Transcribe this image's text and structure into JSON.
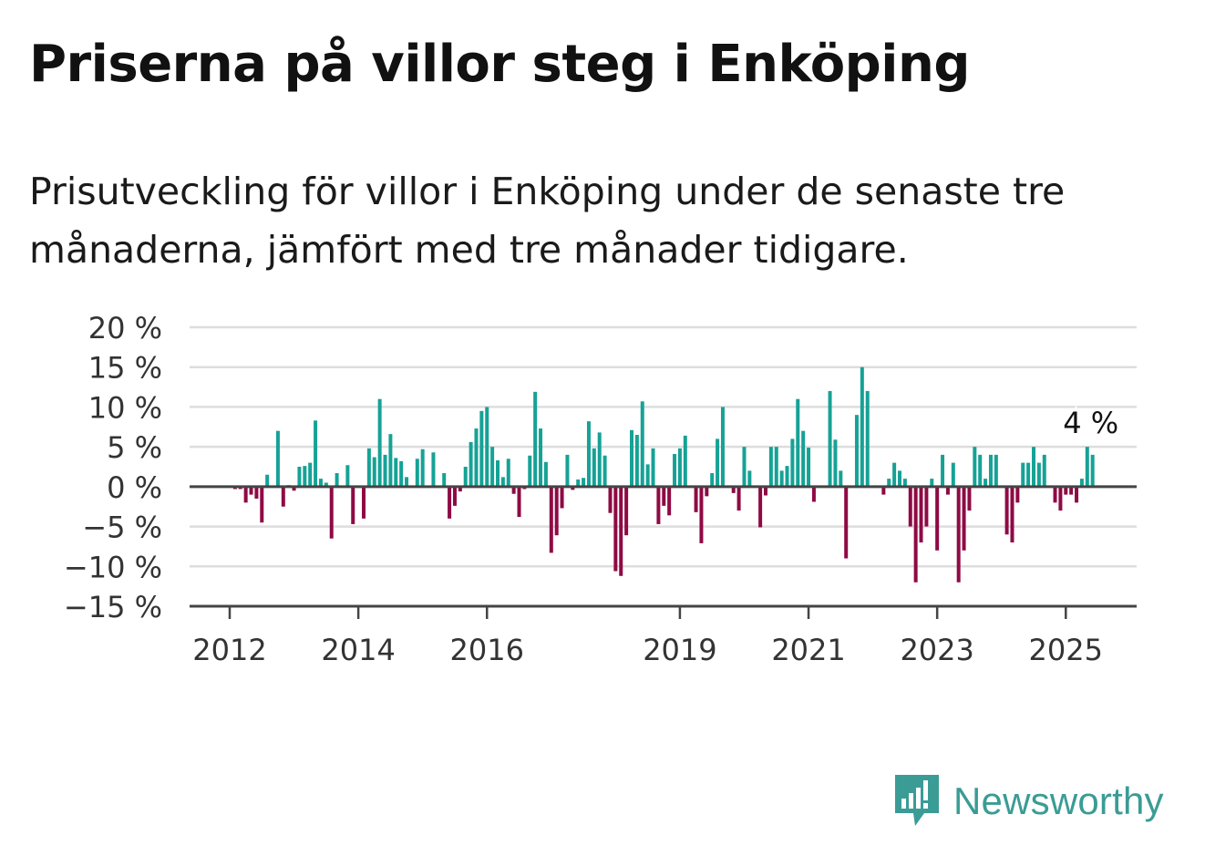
{
  "title": "Priserna på villor steg i Enköping",
  "subtitle": "Prisutveckling för villor i Enköping under de senaste tre månaderna, jämfört med tre månader tidigare.",
  "brand": "Newsworthy",
  "colors": {
    "positive": "#16a296",
    "negative": "#8e0a44",
    "grid": "#dddddd",
    "axis": "#444444",
    "brand": "#3a9c95"
  },
  "chart_data": {
    "type": "bar",
    "y_ticks": [
      "20 %",
      "15 %",
      "10 %",
      "5 %",
      "0 %",
      "−5 %",
      "−10 %",
      "−15 %"
    ],
    "y_tick_values": [
      20,
      15,
      10,
      5,
      0,
      -5,
      -10,
      -15
    ],
    "ylim": [
      -15,
      20
    ],
    "x_ticks": [
      "2012",
      "2014",
      "2016",
      "2019",
      "2021",
      "2023",
      "2025"
    ],
    "x_tick_years": [
      2012,
      2014,
      2016,
      2019,
      2021,
      2023,
      2025
    ],
    "x_start": "2012-01",
    "values": [
      0,
      -0.3,
      -0.3,
      -2,
      -1,
      -1.5,
      -4.5,
      1.5,
      0,
      7,
      -2.5,
      0.2,
      -0.5,
      2.5,
      2.6,
      3,
      8.3,
      1,
      0.5,
      -6.5,
      1.7,
      0,
      2.7,
      -4.7,
      0,
      -4,
      4.8,
      3.7,
      11,
      4,
      6.6,
      3.6,
      3.2,
      1.2,
      0,
      3.5,
      4.7,
      0,
      4.3,
      0,
      1.7,
      -4,
      -2.4,
      -0.6,
      2.5,
      5.6,
      7.3,
      9.5,
      10,
      5,
      3.3,
      1.2,
      3.5,
      -0.9,
      -3.8,
      -0.3,
      3.9,
      11.9,
      7.3,
      3.1,
      -8.3,
      -6.1,
      -2.7,
      4,
      -0.4,
      0.9,
      1.1,
      8.2,
      4.8,
      6.8,
      3.9,
      -3.3,
      -10.6,
      -11.2,
      -6.1,
      7.1,
      6.5,
      10.7,
      2.8,
      4.8,
      -4.7,
      -2.4,
      -3.6,
      4.1,
      4.8,
      6.4,
      0,
      -3.2,
      -7.1,
      -1.2,
      1.7,
      6,
      10,
      0,
      -0.8,
      -3,
      5,
      2,
      0,
      -5.1,
      -1.1,
      5,
      5,
      2,
      2.6,
      6,
      11,
      7,
      4.9,
      -1.9,
      0,
      0,
      12,
      5.9,
      2,
      -9,
      0,
      9,
      15,
      12,
      0,
      0,
      -1,
      1,
      3,
      2,
      1,
      -5,
      -12,
      -7,
      -5,
      1,
      -8,
      4,
      -1,
      3,
      -12,
      -8,
      -3,
      5,
      4,
      1,
      4,
      4,
      0,
      -6,
      -7,
      -2,
      3,
      3,
      5,
      3,
      4,
      0,
      -2,
      -3,
      -1,
      -1,
      -2,
      1,
      5,
      4
    ],
    "last_value_label": "4 %"
  }
}
